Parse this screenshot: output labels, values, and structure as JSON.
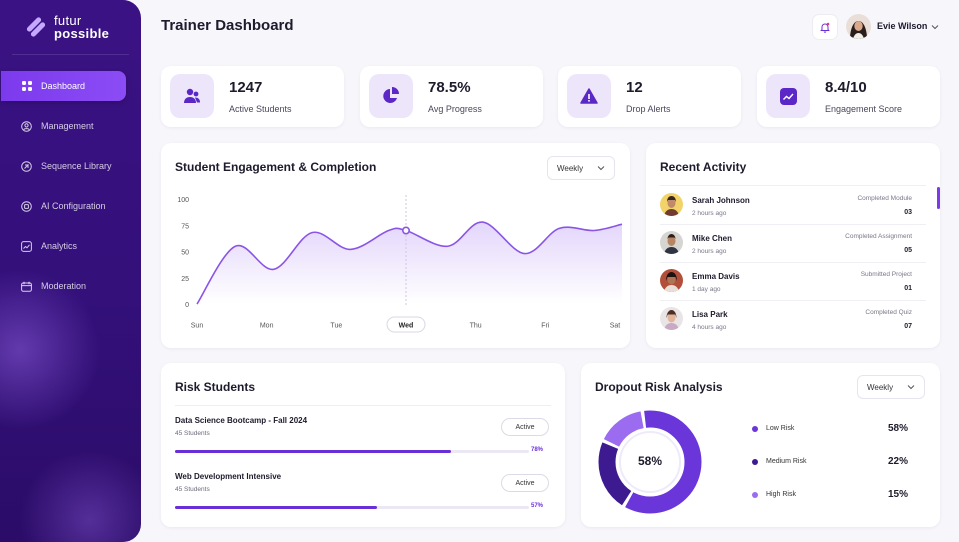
{
  "brand": {
    "line1": "futur",
    "line2": "possible"
  },
  "sidebar": {
    "items": [
      {
        "label": "Dashboard",
        "icon": "grid-icon",
        "active": true
      },
      {
        "label": "Management",
        "icon": "user-circle-icon",
        "active": false
      },
      {
        "label": "Sequence  Library",
        "icon": "library-icon",
        "active": false
      },
      {
        "label": "AI Configuration",
        "icon": "ai-chip-icon",
        "active": false
      },
      {
        "label": "Analytics",
        "icon": "analytics-icon",
        "active": false
      },
      {
        "label": "Moderation",
        "icon": "moderation-icon",
        "active": false
      }
    ]
  },
  "header": {
    "title": "Trainer Dashboard",
    "user_name": "Evie Wilson"
  },
  "stats": [
    {
      "value": "1247",
      "label": "Active Students",
      "icon": "students-icon"
    },
    {
      "value": "78.5%",
      "label": "Avg Progress",
      "icon": "pie-icon"
    },
    {
      "value": "12",
      "label": "Drop Alerts",
      "icon": "alert-icon"
    },
    {
      "value": "8.4/10",
      "label": "Engagement Score",
      "icon": "trend-icon"
    }
  ],
  "engagement": {
    "title": "Student Engagement & Completion",
    "period": "Weekly",
    "highlight_day": "Wed"
  },
  "chart_data": {
    "type": "area",
    "title": "Student Engagement & Completion",
    "categories": [
      "Sun",
      "Mon",
      "Tue",
      "Wed",
      "Thu",
      "Fri",
      "Sat"
    ],
    "yticks": [
      "100",
      "75",
      "50",
      "25",
      "0"
    ],
    "ylim": [
      0,
      100
    ],
    "x_index": [
      0,
      0.55,
      1.1,
      1.65,
      2.2,
      2.75,
      3.0,
      3.6,
      4.1,
      4.7,
      5.2,
      5.7,
      6.1
    ],
    "y": [
      0,
      55,
      33,
      68,
      52,
      70,
      70,
      55,
      78,
      48,
      72,
      70,
      76
    ],
    "highlight": {
      "x_index": 3,
      "y": 70
    },
    "grid": false,
    "color": "#8a55e6"
  },
  "activity": {
    "title": "Recent Activity",
    "items": [
      {
        "name": "Sarah Johnson",
        "time": "2 hours ago",
        "type": "Completed Module",
        "num": "03"
      },
      {
        "name": "Mike Chen",
        "time": "2 hours ago",
        "type": "Completed Assignment",
        "num": "05"
      },
      {
        "name": "Emma Davis",
        "time": "1 day ago",
        "type": "Submitted Project",
        "num": "01"
      },
      {
        "name": "Lisa Park",
        "time": "4 hours ago",
        "type": "Completed Quiz",
        "num": "07"
      }
    ]
  },
  "risk_students": {
    "title": "Risk Students",
    "items": [
      {
        "course": "Data Science Bootcamp - Fall 2024",
        "students": "45 Students",
        "status": "Active",
        "pct": "78%",
        "progress": 0.78
      },
      {
        "course": "Web Development Intensive",
        "students": "45 Students",
        "status": "Active",
        "pct": "57%",
        "progress": 0.57
      }
    ]
  },
  "dropout": {
    "title": "Dropout Risk Analysis",
    "period": "Weekly",
    "center": "58%",
    "legend": [
      {
        "label": "Low Risk",
        "value": "58%",
        "frac": 0.58,
        "color": "#6a35d9"
      },
      {
        "label": "Medium Risk",
        "value": "22%",
        "frac": 0.22,
        "color": "#3d1a8f"
      },
      {
        "label": "High Risk",
        "value": "15%",
        "frac": 0.15,
        "color": "#9b6cf0"
      }
    ]
  },
  "colors": {
    "accent": "#7c3aed",
    "sidebar": "#33107a"
  }
}
